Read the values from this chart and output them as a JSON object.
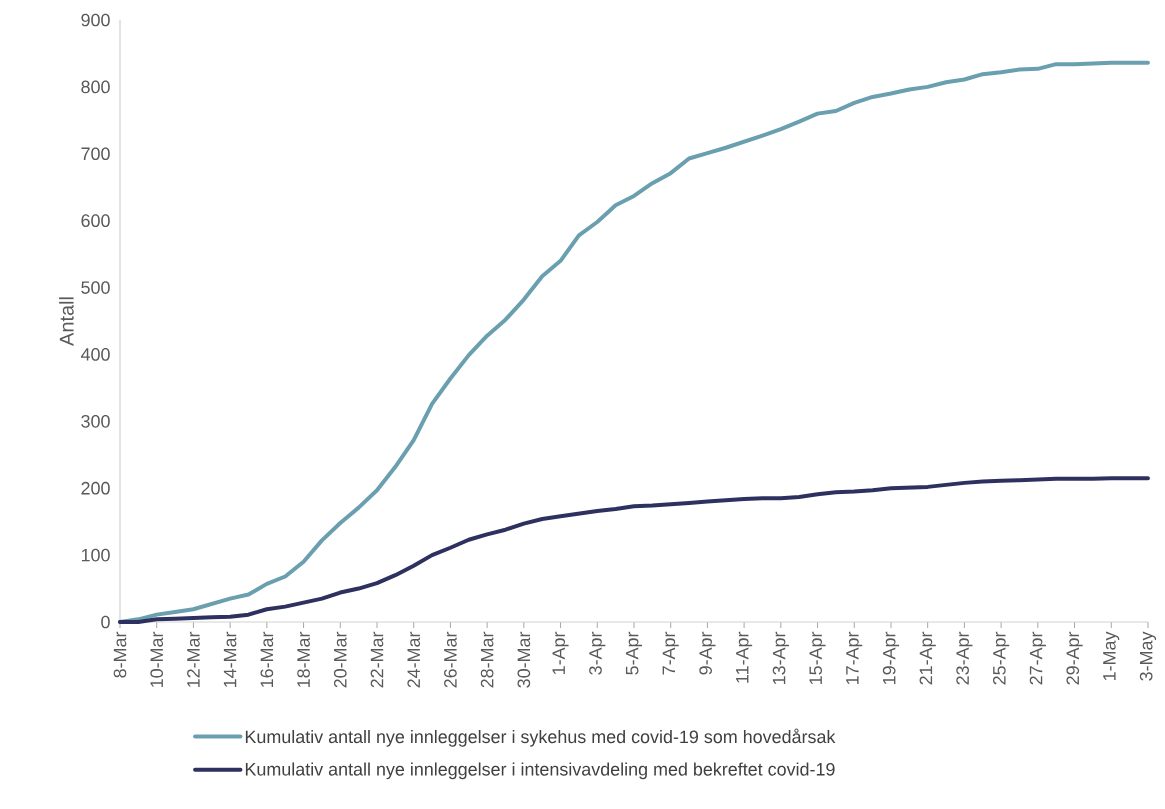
{
  "chart_data": {
    "type": "line",
    "ylabel": "Antall",
    "categories": [
      "8-Mar",
      null,
      "10-Mar",
      null,
      "12-Mar",
      null,
      "14-Mar",
      null,
      "16-Mar",
      null,
      "18-Mar",
      null,
      "20-Mar",
      null,
      "22-Mar",
      null,
      "24-Mar",
      null,
      "26-Mar",
      null,
      "28-Mar",
      null,
      "30-Mar",
      null,
      "1-Apr",
      null,
      "3-Apr",
      null,
      "5-Apr",
      null,
      "7-Apr",
      null,
      "9-Apr",
      null,
      "11-Apr",
      null,
      "13-Apr",
      null,
      "15-Apr",
      null,
      "17-Apr",
      null,
      "19-Apr",
      null,
      "21-Apr",
      null,
      "23-Apr",
      null,
      "25-Apr",
      null,
      "27-Apr",
      null,
      "29-Apr",
      null,
      "1-May",
      null,
      "3-May"
    ],
    "series": [
      {
        "name": "Kumulativ antall nye innleggelser i sykehus med covid-19 som hovedårsak",
        "color": "#6a9fb0",
        "values": [
          0,
          4,
          11,
          15,
          19,
          27,
          35,
          41,
          57,
          68,
          90,
          122,
          148,
          171,
          197,
          232,
          272,
          326,
          364,
          399,
          428,
          452,
          482,
          517,
          540,
          578,
          598,
          623,
          637,
          656,
          671,
          693,
          701,
          709,
          718,
          727,
          737,
          748,
          760,
          764,
          776,
          785,
          790,
          796,
          800,
          807,
          811,
          819,
          822,
          826,
          827,
          834,
          834,
          835,
          836,
          836,
          836
        ]
      },
      {
        "name": "Kumulativ antall nye innleggelser i intensivavdeling med bekreftet covid-19",
        "color": "#2e3160",
        "values": [
          0,
          0,
          4,
          5,
          6,
          7,
          8,
          11,
          19,
          23,
          29,
          35,
          44,
          50,
          58,
          70,
          84,
          100,
          111,
          123,
          131,
          138,
          147,
          154,
          158,
          162,
          166,
          169,
          173,
          174,
          176,
          178,
          180,
          182,
          184,
          185,
          185,
          187,
          191,
          194,
          195,
          197,
          200,
          201,
          202,
          205,
          208,
          210,
          211,
          212,
          213,
          214,
          214,
          214,
          215,
          215,
          215
        ]
      }
    ],
    "ylim": [
      0,
      900
    ],
    "yticks": [
      0,
      100,
      200,
      300,
      400,
      500,
      600,
      700,
      800,
      900
    ],
    "legend": "bottom"
  }
}
